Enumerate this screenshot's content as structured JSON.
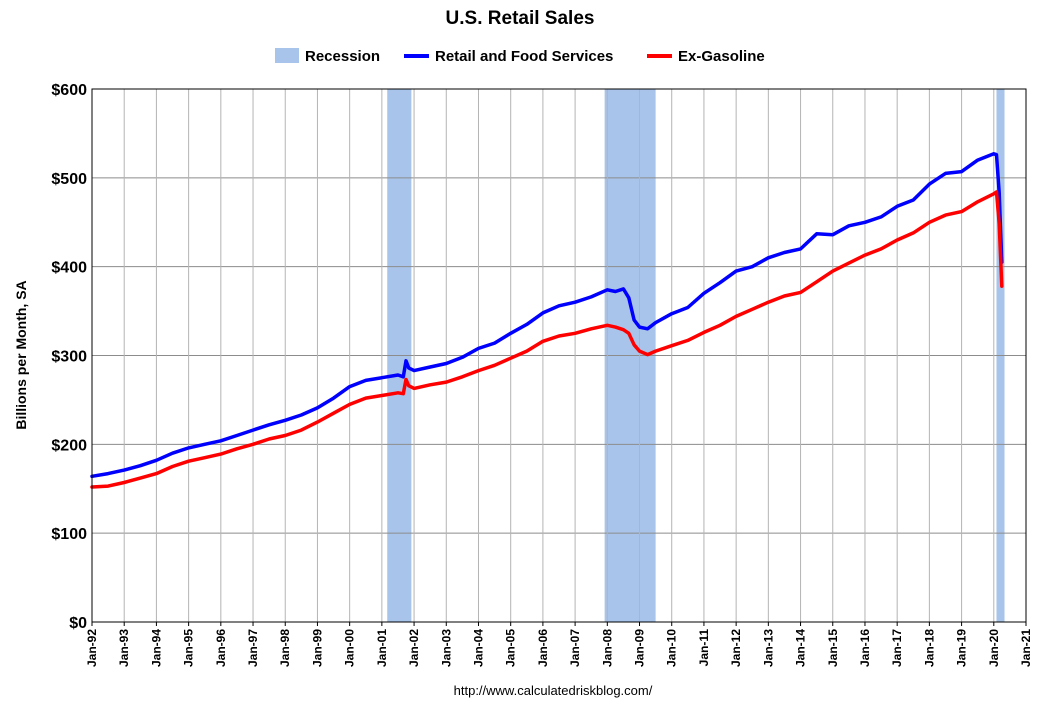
{
  "chart_data": {
    "type": "line",
    "title": "U.S. Retail Sales",
    "ylabel": "Billions per Month, SA",
    "xlabel": "",
    "source": "http://www.calculatedriskblog.com/",
    "ylim": [
      0,
      600
    ],
    "xlim": [
      "1992-01",
      "2021-01"
    ],
    "y_ticks": [
      "$0",
      "$100",
      "$200",
      "$300",
      "$400",
      "$500",
      "$600"
    ],
    "y_tick_values": [
      0,
      100,
      200,
      300,
      400,
      500,
      600
    ],
    "x_ticks": [
      "Jan-92",
      "Jan-93",
      "Jan-94",
      "Jan-95",
      "Jan-96",
      "Jan-97",
      "Jan-98",
      "Jan-99",
      "Jan-00",
      "Jan-01",
      "Jan-02",
      "Jan-03",
      "Jan-04",
      "Jan-05",
      "Jan-06",
      "Jan-07",
      "Jan-08",
      "Jan-09",
      "Jan-10",
      "Jan-11",
      "Jan-12",
      "Jan-13",
      "Jan-14",
      "Jan-15",
      "Jan-16",
      "Jan-17",
      "Jan-18",
      "Jan-19",
      "Jan-20",
      "Jan-21"
    ],
    "grid": true,
    "legend_position": "top-center",
    "legend": [
      {
        "label": "Recession",
        "kind": "band",
        "color": "#a9c4eb"
      },
      {
        "label": "Retail and Food Services",
        "kind": "line",
        "color": "#0000ff"
      },
      {
        "label": "Ex-Gasoline",
        "kind": "line",
        "color": "#ff0000"
      }
    ],
    "recessions": [
      {
        "start": "2001-03",
        "end": "2001-11"
      },
      {
        "start": "2007-12",
        "end": "2009-06"
      },
      {
        "start": "2020-02",
        "end": "2020-04"
      }
    ],
    "series": [
      {
        "name": "Retail and Food Services",
        "color": "#0000ff",
        "points": [
          [
            "1992-01",
            164
          ],
          [
            "1992-07",
            167
          ],
          [
            "1993-01",
            171
          ],
          [
            "1993-07",
            176
          ],
          [
            "1994-01",
            182
          ],
          [
            "1994-07",
            190
          ],
          [
            "1995-01",
            196
          ],
          [
            "1995-07",
            200
          ],
          [
            "1996-01",
            204
          ],
          [
            "1996-07",
            210
          ],
          [
            "1997-01",
            216
          ],
          [
            "1997-07",
            222
          ],
          [
            "1998-01",
            227
          ],
          [
            "1998-07",
            233
          ],
          [
            "1999-01",
            241
          ],
          [
            "1999-07",
            252
          ],
          [
            "2000-01",
            265
          ],
          [
            "2000-07",
            272
          ],
          [
            "2001-01",
            275
          ],
          [
            "2001-07",
            278
          ],
          [
            "2001-09",
            276
          ],
          [
            "2001-10",
            294
          ],
          [
            "2001-11",
            286
          ],
          [
            "2002-01",
            283
          ],
          [
            "2002-07",
            287
          ],
          [
            "2003-01",
            291
          ],
          [
            "2003-07",
            298
          ],
          [
            "2004-01",
            308
          ],
          [
            "2004-07",
            314
          ],
          [
            "2005-01",
            325
          ],
          [
            "2005-07",
            335
          ],
          [
            "2006-01",
            348
          ],
          [
            "2006-07",
            356
          ],
          [
            "2007-01",
            360
          ],
          [
            "2007-07",
            366
          ],
          [
            "2008-01",
            374
          ],
          [
            "2008-04",
            372
          ],
          [
            "2008-07",
            375
          ],
          [
            "2008-09",
            365
          ],
          [
            "2008-11",
            340
          ],
          [
            "2009-01",
            332
          ],
          [
            "2009-04",
            330
          ],
          [
            "2009-07",
            337
          ],
          [
            "2010-01",
            347
          ],
          [
            "2010-07",
            354
          ],
          [
            "2011-01",
            370
          ],
          [
            "2011-07",
            382
          ],
          [
            "2012-01",
            395
          ],
          [
            "2012-07",
            400
          ],
          [
            "2013-01",
            410
          ],
          [
            "2013-07",
            416
          ],
          [
            "2014-01",
            420
          ],
          [
            "2014-07",
            437
          ],
          [
            "2015-01",
            436
          ],
          [
            "2015-07",
            446
          ],
          [
            "2016-01",
            450
          ],
          [
            "2016-07",
            456
          ],
          [
            "2017-01",
            468
          ],
          [
            "2017-07",
            475
          ],
          [
            "2018-01",
            493
          ],
          [
            "2018-07",
            505
          ],
          [
            "2019-01",
            507
          ],
          [
            "2019-07",
            520
          ],
          [
            "2020-01",
            527
          ],
          [
            "2020-02",
            526
          ],
          [
            "2020-03",
            483
          ],
          [
            "2020-04",
            405
          ]
        ]
      },
      {
        "name": "Ex-Gasoline",
        "color": "#ff0000",
        "points": [
          [
            "1992-01",
            152
          ],
          [
            "1992-07",
            153
          ],
          [
            "1993-01",
            157
          ],
          [
            "1993-07",
            162
          ],
          [
            "1994-01",
            167
          ],
          [
            "1994-07",
            175
          ],
          [
            "1995-01",
            181
          ],
          [
            "1995-07",
            185
          ],
          [
            "1996-01",
            189
          ],
          [
            "1996-07",
            195
          ],
          [
            "1997-01",
            200
          ],
          [
            "1997-07",
            206
          ],
          [
            "1998-01",
            210
          ],
          [
            "1998-07",
            216
          ],
          [
            "1999-01",
            225
          ],
          [
            "1999-07",
            235
          ],
          [
            "2000-01",
            245
          ],
          [
            "2000-07",
            252
          ],
          [
            "2001-01",
            255
          ],
          [
            "2001-07",
            258
          ],
          [
            "2001-09",
            257
          ],
          [
            "2001-10",
            273
          ],
          [
            "2001-11",
            266
          ],
          [
            "2002-01",
            263
          ],
          [
            "2002-07",
            267
          ],
          [
            "2003-01",
            270
          ],
          [
            "2003-07",
            276
          ],
          [
            "2004-01",
            283
          ],
          [
            "2004-07",
            289
          ],
          [
            "2005-01",
            297
          ],
          [
            "2005-07",
            305
          ],
          [
            "2006-01",
            316
          ],
          [
            "2006-07",
            322
          ],
          [
            "2007-01",
            325
          ],
          [
            "2007-07",
            330
          ],
          [
            "2008-01",
            334
          ],
          [
            "2008-04",
            332
          ],
          [
            "2008-07",
            329
          ],
          [
            "2008-09",
            325
          ],
          [
            "2008-11",
            312
          ],
          [
            "2009-01",
            305
          ],
          [
            "2009-04",
            301
          ],
          [
            "2009-07",
            305
          ],
          [
            "2010-01",
            311
          ],
          [
            "2010-07",
            317
          ],
          [
            "2011-01",
            326
          ],
          [
            "2011-07",
            334
          ],
          [
            "2012-01",
            344
          ],
          [
            "2012-07",
            352
          ],
          [
            "2013-01",
            360
          ],
          [
            "2013-07",
            367
          ],
          [
            "2014-01",
            371
          ],
          [
            "2014-07",
            383
          ],
          [
            "2015-01",
            395
          ],
          [
            "2015-07",
            404
          ],
          [
            "2016-01",
            413
          ],
          [
            "2016-07",
            420
          ],
          [
            "2017-01",
            430
          ],
          [
            "2017-07",
            438
          ],
          [
            "2018-01",
            450
          ],
          [
            "2018-07",
            458
          ],
          [
            "2019-01",
            462
          ],
          [
            "2019-07",
            473
          ],
          [
            "2020-01",
            482
          ],
          [
            "2020-02",
            484
          ],
          [
            "2020-03",
            448
          ],
          [
            "2020-04",
            378
          ]
        ]
      }
    ]
  }
}
